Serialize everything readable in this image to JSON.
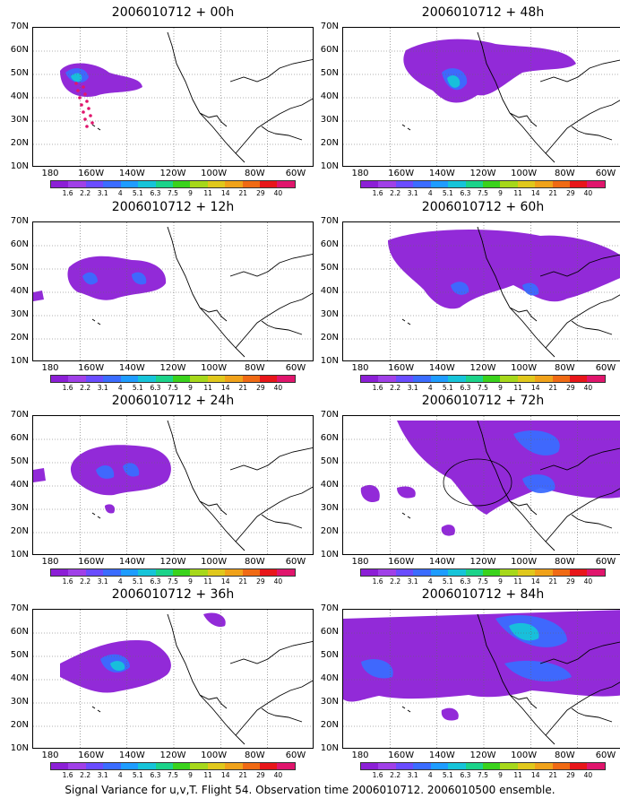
{
  "panels": [
    {
      "title": "2006010712 + 00h"
    },
    {
      "title": "2006010712 + 48h"
    },
    {
      "title": "2006010712 + 12h"
    },
    {
      "title": "2006010712 + 60h"
    },
    {
      "title": "2006010712 + 24h"
    },
    {
      "title": "2006010712 + 72h"
    },
    {
      "title": "2006010712 + 36h"
    },
    {
      "title": "2006010712 + 84h"
    }
  ],
  "lat_labels": [
    "70N",
    "60N",
    "50N",
    "40N",
    "30N",
    "20N",
    "10N"
  ],
  "lon_labels": [
    "180",
    "160W",
    "140W",
    "120W",
    "100W",
    "80W",
    "60W"
  ],
  "colorbar": {
    "labels": [
      "1.6",
      "2.2",
      "3.1",
      "4",
      "5.1",
      "6.3",
      "7.5",
      "9",
      "11",
      "14",
      "21",
      "29",
      "40"
    ],
    "colors": [
      "#8c1fd6",
      "#a040e8",
      "#6a4cff",
      "#3b6cff",
      "#1e9cff",
      "#16c4d9",
      "#1bd38a",
      "#3ad21c",
      "#a6d81a",
      "#e0c81c",
      "#f0a21a",
      "#f06a14",
      "#e8161a",
      "#e0156c"
    ]
  },
  "footer": "Signal Variance for u,v,T. Flight 54. Observation time 2006010712. 2006010500 ensemble."
}
